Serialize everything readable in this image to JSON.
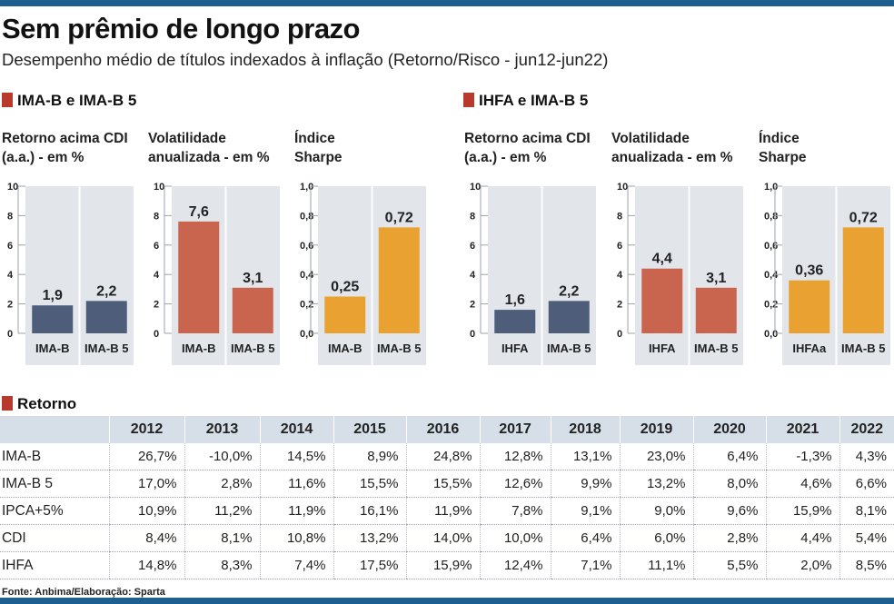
{
  "title": "Sem prêmio de longo prazo",
  "subtitle": "Desempenho médio de títulos indexados à inflação (Retorno/Risco - jun12-jun22)",
  "sections": {
    "left": "IMA-B e IMA-B 5",
    "right": "IHFA e IMA-B 5",
    "table": "Retorno"
  },
  "panel_titles": {
    "retorno": [
      "Retorno acima CDI",
      "(a.a.) - em %"
    ],
    "volatilidade": [
      "Volatilidade",
      "anualizada - em %"
    ],
    "sharpe": [
      "Índice",
      "Sharpe"
    ]
  },
  "colors": {
    "accent": "#b73a2c",
    "retorno_bar": "#4e5d7a",
    "volatilidade_bar": "#c9654e",
    "sharpe_bar": "#e9a232",
    "panel_bg": "#e2e6eb",
    "table_header": "#d6dee8",
    "bars_frame": "#1d5f8e"
  },
  "chart_data": [
    {
      "type": "bar",
      "group": "IMA-B e IMA-B 5",
      "metric": "retorno",
      "categories": [
        "IMA-B",
        "IMA-B 5"
      ],
      "values": [
        1.9,
        2.2
      ],
      "labels": [
        "1,9",
        "2,2"
      ],
      "ylim": [
        0,
        10
      ],
      "yticks": [
        "0",
        "2",
        "4",
        "6",
        "8",
        "10"
      ]
    },
    {
      "type": "bar",
      "group": "IMA-B e IMA-B 5",
      "metric": "volatilidade",
      "categories": [
        "IMA-B",
        "IMA-B 5"
      ],
      "values": [
        7.6,
        3.1
      ],
      "labels": [
        "7,6",
        "3,1"
      ],
      "ylim": [
        0,
        10
      ],
      "yticks": [
        "0",
        "2",
        "4",
        "6",
        "8",
        "10"
      ]
    },
    {
      "type": "bar",
      "group": "IMA-B e IMA-B 5",
      "metric": "sharpe",
      "categories": [
        "IMA-B",
        "IMA-B 5"
      ],
      "values": [
        0.25,
        0.72
      ],
      "labels": [
        "0,25",
        "0,72"
      ],
      "ylim": [
        0,
        1
      ],
      "yticks": [
        "0,0",
        "0,2",
        "0,4",
        "0,6",
        "0,8",
        "1,0"
      ]
    },
    {
      "type": "bar",
      "group": "IHFA e IMA-B 5",
      "metric": "retorno",
      "categories": [
        "IHFA",
        "IMA-B 5"
      ],
      "values": [
        1.6,
        2.2
      ],
      "labels": [
        "1,6",
        "2,2"
      ],
      "ylim": [
        0,
        10
      ],
      "yticks": [
        "0",
        "2",
        "4",
        "6",
        "8",
        "10"
      ]
    },
    {
      "type": "bar",
      "group": "IHFA e IMA-B 5",
      "metric": "volatilidade",
      "categories": [
        "IHFA",
        "IMA-B 5"
      ],
      "values": [
        4.4,
        3.1
      ],
      "labels": [
        "4,4",
        "3,1"
      ],
      "ylim": [
        0,
        10
      ],
      "yticks": [
        "0",
        "2",
        "4",
        "6",
        "8",
        "10"
      ]
    },
    {
      "type": "bar",
      "group": "IHFA e IMA-B 5",
      "metric": "sharpe",
      "categories": [
        "IHFAa",
        "IMA-B 5"
      ],
      "values": [
        0.36,
        0.72
      ],
      "labels": [
        "0,36",
        "0,72"
      ],
      "ylim": [
        0,
        1
      ],
      "yticks": [
        "0,0",
        "0,2",
        "0,4",
        "0,6",
        "0,8",
        "1,0"
      ]
    },
    {
      "type": "table",
      "title": "Retorno",
      "columns": [
        "2012",
        "2013",
        "2014",
        "2015",
        "2016",
        "2017",
        "2018",
        "2019",
        "2020",
        "2021",
        "2022"
      ],
      "rows": [
        {
          "label": "IMA-B",
          "values": [
            "26,7%",
            "-10,0%",
            "14,5%",
            "8,9%",
            "24,8%",
            "12,8%",
            "13,1%",
            "23,0%",
            "6,4%",
            "-1,3%",
            "4,3%"
          ]
        },
        {
          "label": "IMA-B 5",
          "values": [
            "17,0%",
            "2,8%",
            "11,6%",
            "15,5%",
            "15,5%",
            "12,6%",
            "9,9%",
            "13,2%",
            "8,0%",
            "4,6%",
            "6,6%"
          ]
        },
        {
          "label": "IPCA+5%",
          "values": [
            "10,9%",
            "11,2%",
            "11,9%",
            "16,1%",
            "11,9%",
            "7,8%",
            "9,1%",
            "9,0%",
            "9,6%",
            "15,9%",
            "8,1%"
          ]
        },
        {
          "label": "CDI",
          "values": [
            "8,4%",
            "8,1%",
            "10,8%",
            "13,2%",
            "14,0%",
            "10,0%",
            "6,4%",
            "6,0%",
            "2,8%",
            "4,4%",
            "5,4%"
          ]
        },
        {
          "label": "IHFA",
          "values": [
            "14,8%",
            "8,3%",
            "7,4%",
            "17,5%",
            "15,9%",
            "12,4%",
            "7,1%",
            "11,1%",
            "5,5%",
            "2,0%",
            "8,5%"
          ]
        }
      ]
    }
  ],
  "source": "Fonte: Anbima/Elaboração: Sparta"
}
